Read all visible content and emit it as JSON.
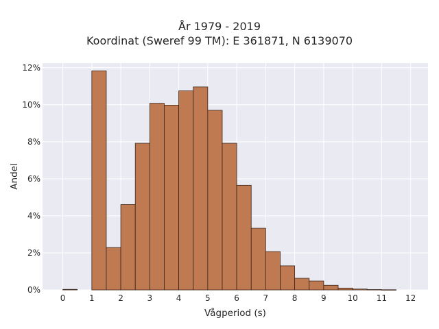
{
  "chart_data": {
    "type": "bar",
    "title_lines": [
      "År 1979 - 2019",
      "Koordinat (Sweref 99 TM): E 361871, N 6139070"
    ],
    "xlabel": "Vågperiod (s)",
    "ylabel": "Andel",
    "xlim": [
      -0.7,
      12.6
    ],
    "ylim": [
      0,
      0.1225
    ],
    "x_ticks": [
      0,
      1,
      2,
      3,
      4,
      5,
      6,
      7,
      8,
      9,
      10,
      11,
      12
    ],
    "x_tick_labels": [
      "0",
      "1",
      "2",
      "3",
      "4",
      "5",
      "6",
      "7",
      "8",
      "9",
      "10",
      "11",
      "12"
    ],
    "y_ticks": [
      0,
      0.02,
      0.04,
      0.06,
      0.08,
      0.1,
      0.12
    ],
    "y_tick_labels": [
      "0%",
      "2%",
      "4%",
      "6%",
      "8%",
      "10%",
      "12%"
    ],
    "grid": true,
    "bar_color": "#bf7a52",
    "bar_edge_color": "#3a2418",
    "background_color": "#eaeaf2",
    "bin_width": 0.5,
    "bin_starts": [
      0,
      0.5,
      1,
      1.5,
      2,
      2.5,
      3,
      3.5,
      4,
      4.5,
      5,
      5.5,
      6,
      6.5,
      7,
      7.5,
      8,
      8.5,
      9,
      9.5,
      10,
      10.5,
      11,
      11.5
    ],
    "values": [
      0.0003,
      0,
      0.1183,
      0.0229,
      0.0461,
      0.0792,
      0.1008,
      0.0998,
      0.1075,
      0.1096,
      0.097,
      0.0792,
      0.0565,
      0.0333,
      0.0207,
      0.013,
      0.0063,
      0.0048,
      0.0025,
      0.001,
      0.0005,
      0.0002,
      0.0001,
      0
    ]
  }
}
